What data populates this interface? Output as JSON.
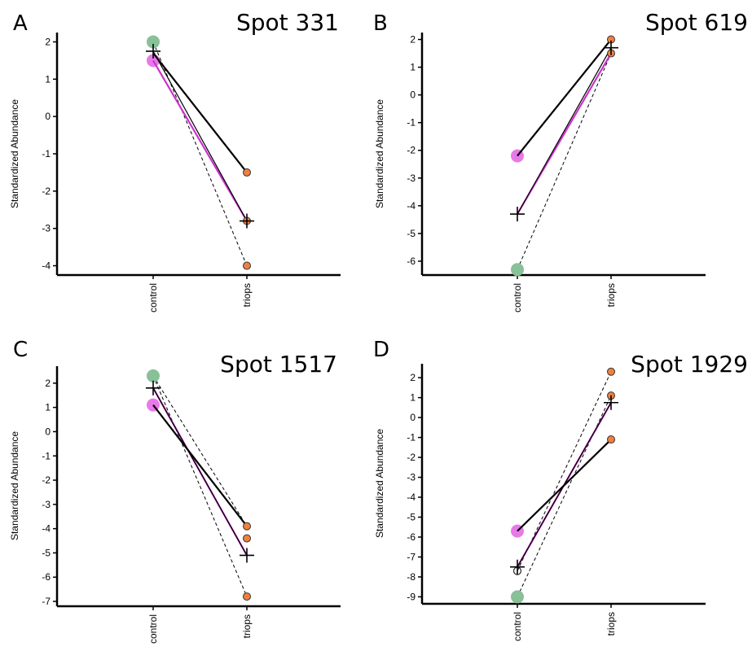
{
  "colors": {
    "mean_line": "#000000",
    "magenta_line": "#cc33cc",
    "dashed_line": "#000000",
    "control_green": "#88c098",
    "control_pink": "#e879e8",
    "triops_orange": "#f08040",
    "point_outline": "#333333"
  },
  "chart_data": [
    {
      "type": "line",
      "panel_label": "A",
      "title": "Spot 331",
      "ylabel": "Standardized Abundance",
      "categories": [
        "control",
        "triops"
      ],
      "yticks": [
        2,
        1,
        0,
        -1,
        -2,
        -3,
        -4
      ],
      "ylim": [
        -4.25,
        2.25
      ],
      "mean": [
        1.75,
        -2.8
      ],
      "magenta": [
        1.5,
        -2.8
      ],
      "solid": [
        1.7,
        -1.5
      ],
      "dashed": [
        [
          2.0,
          -4.0
        ]
      ],
      "control_points": [
        {
          "y": 2.0,
          "color": "green"
        },
        {
          "y": 1.5,
          "color": "pink"
        }
      ],
      "triops_points": [
        -1.5,
        -2.8,
        -4.0
      ]
    },
    {
      "type": "line",
      "panel_label": "B",
      "title": "Spot 619",
      "ylabel": "Standardized Abundance",
      "categories": [
        "control",
        "triops"
      ],
      "yticks": [
        2,
        1,
        0,
        -1,
        -2,
        -3,
        -4,
        -5,
        -6
      ],
      "ylim": [
        -6.5,
        2.25
      ],
      "mean": [
        -4.3,
        1.7
      ],
      "magenta": [
        -4.3,
        1.5
      ],
      "solid": [
        -2.2,
        2.0
      ],
      "dashed": [
        [
          -6.3,
          1.5
        ]
      ],
      "control_points": [
        {
          "y": -2.2,
          "color": "pink"
        },
        {
          "y": -6.3,
          "color": "green"
        }
      ],
      "triops_points": [
        2.0,
        1.5
      ]
    },
    {
      "type": "line",
      "panel_label": "C",
      "title": "Spot 1517",
      "ylabel": "Standardized Abundance",
      "categories": [
        "control",
        "triops"
      ],
      "yticks": [
        2,
        1,
        0,
        -1,
        -2,
        -3,
        -4,
        -5,
        -6,
        -7
      ],
      "ylim": [
        -7.2,
        2.7
      ],
      "mean": [
        1.8,
        -5.1
      ],
      "magenta": [
        1.8,
        -5.1
      ],
      "solid": [
        1.1,
        -3.9
      ],
      "dashed": [
        [
          2.3,
          -3.9
        ],
        [
          2.3,
          -6.8
        ]
      ],
      "control_points": [
        {
          "y": 2.3,
          "color": "green"
        },
        {
          "y": 1.1,
          "color": "pink"
        }
      ],
      "triops_points": [
        -3.9,
        -4.4,
        -6.8
      ]
    },
    {
      "type": "line",
      "panel_label": "D",
      "title": "Spot 1929",
      "ylabel": "Standardized Abundance",
      "categories": [
        "control",
        "triops"
      ],
      "yticks": [
        2,
        1,
        0,
        -1,
        -2,
        -3,
        -4,
        -5,
        -6,
        -7,
        -8,
        -9
      ],
      "ylim": [
        -9.35,
        2.7
      ],
      "mean": [
        -7.5,
        0.75
      ],
      "magenta": [
        -7.5,
        0.75
      ],
      "solid": [
        -5.7,
        -1.1
      ],
      "dashed": [
        [
          -7.7,
          2.3
        ],
        [
          -9.0,
          1.1
        ]
      ],
      "control_points": [
        {
          "y": -5.7,
          "color": "pink"
        },
        {
          "y": -7.7,
          "color": "outline"
        },
        {
          "y": -9.0,
          "color": "green"
        }
      ],
      "triops_points": [
        2.3,
        1.1,
        -1.1
      ]
    }
  ]
}
